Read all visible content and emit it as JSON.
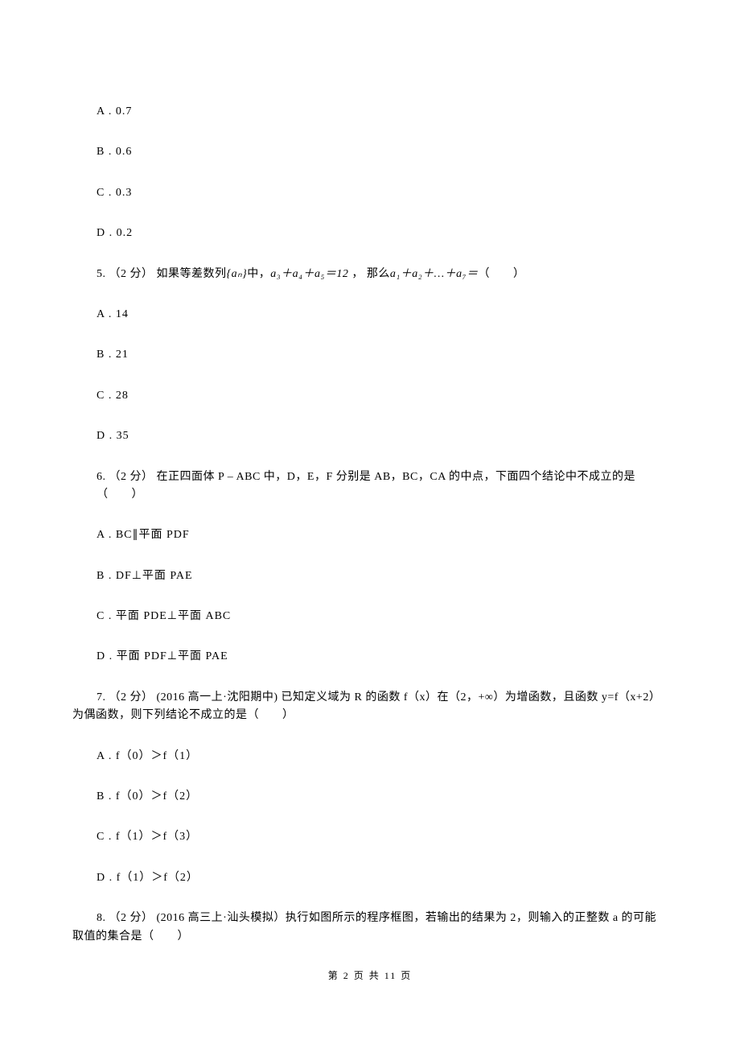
{
  "q4": {
    "options": {
      "A": "A .  0.7",
      "B": "B .  0.6",
      "C": "C .  0.3",
      "D": "D .  0.2"
    }
  },
  "q5": {
    "stem_prefix": "5.  （2 分）  如果等差数列",
    "seq": "{aₙ}",
    "stem_mid1": "中，",
    "expr1": "a₃＋a₄＋a₅＝12",
    "stem_mid2": " ，  那么",
    "expr2": "a₁＋a₂＋…＋a₇＝",
    "stem_suffix": "（　　）",
    "options": {
      "A": "A .  14",
      "B": "B .  21",
      "C": "C .  28",
      "D": "D .  35"
    }
  },
  "q6": {
    "stem": "6.  （2 分）  在正四面体 P – ABC 中，D，E，F 分别是 AB，BC，CA 的中点，下面四个结论中不成立的是（　　）",
    "options": {
      "A": "A .  BC∥平面 PDF",
      "B": "B .  DF⊥平面 PAE",
      "C": "C .  平面 PDE⊥平面 ABC",
      "D": "D .  平面 PDF⊥平面 PAE"
    }
  },
  "q7": {
    "stem": "7.  （2 分）  (2016 高一上·沈阳期中)  已知定义域为 R 的函数 f（x）在（2，+∞）为增函数，且函数 y=f（x+2）为偶函数，则下列结论不成立的是（　　）",
    "options": {
      "A": "A .  f（0）＞f（1）",
      "B": "B .  f（0）＞f（2）",
      "C": "C .  f（1）＞f（3）",
      "D": "D .  f（1）＞f（2）"
    }
  },
  "q8": {
    "stem": "8.  （2 分）  (2016 高三上·汕头模拟）执行如图所示的程序框图，若输出的结果为 2，则输入的正整数 a 的可能取值的集合是（　　）"
  },
  "footer": "第 2 页 共 11 页"
}
